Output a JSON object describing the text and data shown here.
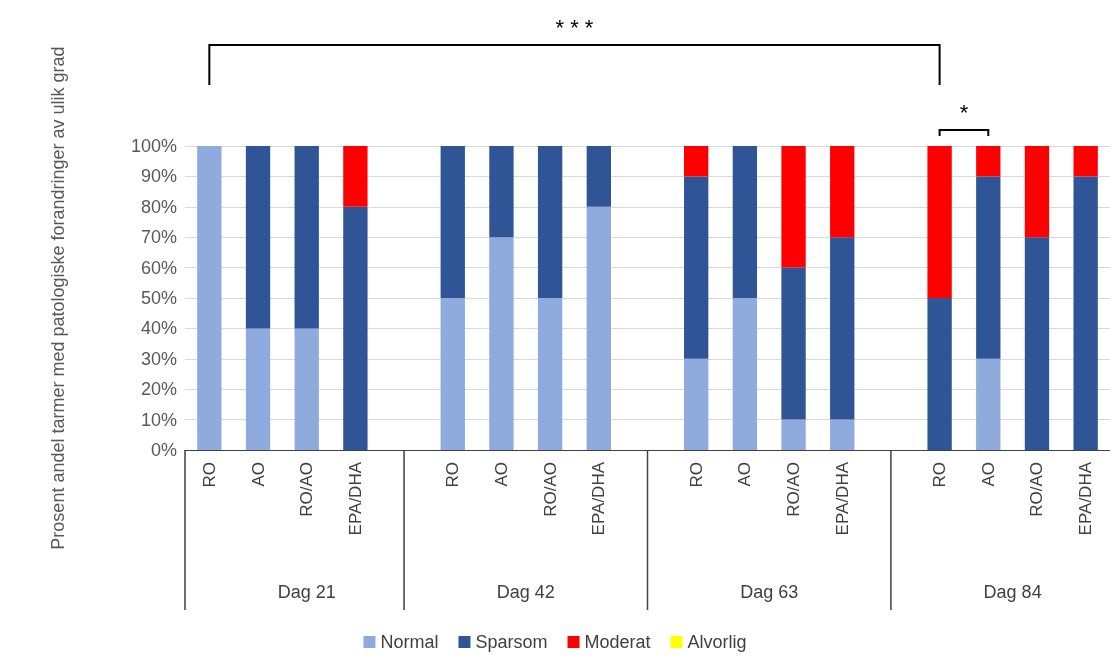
{
  "chart_data": {
    "type": "bar",
    "stacked": true,
    "ylabel": "Prosent andel tarmer med patologiske forandringer av ulik grad",
    "categories": [
      "RO",
      "AO",
      "RO/AO",
      "EPA/DHA",
      null,
      "RO",
      "AO",
      "RO/AO",
      "EPA/DHA",
      null,
      "RO",
      "AO",
      "RO/AO",
      "EPA/DHA",
      null,
      "RO",
      "AO",
      "RO/AO",
      "EPA/DHA"
    ],
    "series": [
      {
        "name": "Normal",
        "color": "#8faadc",
        "values": [
          100,
          40,
          40,
          0,
          null,
          50,
          70,
          50,
          80,
          null,
          30,
          50,
          10,
          10,
          null,
          0,
          30,
          0,
          0
        ]
      },
      {
        "name": "Sparsom",
        "color": "#2f5597",
        "values": [
          0,
          60,
          60,
          80,
          null,
          50,
          30,
          50,
          20,
          null,
          60,
          50,
          50,
          60,
          null,
          50,
          60,
          70,
          90
        ]
      },
      {
        "name": "Moderat",
        "color": "#ff0000",
        "values": [
          0,
          0,
          0,
          20,
          null,
          0,
          0,
          0,
          0,
          null,
          10,
          0,
          40,
          30,
          null,
          50,
          10,
          30,
          10
        ]
      },
      {
        "name": "Alvorlig",
        "color": "#ffff00",
        "values": [
          0,
          0,
          0,
          0,
          null,
          0,
          0,
          0,
          0,
          null,
          0,
          0,
          0,
          0,
          null,
          0,
          0,
          0,
          0
        ]
      }
    ],
    "ylim": [
      0,
      100
    ],
    "yticks": [
      {
        "value": 0,
        "label": "0%"
      },
      {
        "value": 10,
        "label": "10%"
      },
      {
        "value": 20,
        "label": "20%"
      },
      {
        "value": 30,
        "label": "30%"
      },
      {
        "value": 40,
        "label": "40%"
      },
      {
        "value": 50,
        "label": "50%"
      },
      {
        "value": 60,
        "label": "60%"
      },
      {
        "value": 70,
        "label": "70%"
      },
      {
        "value": 80,
        "label": "80%"
      },
      {
        "value": 90,
        "label": "90%"
      },
      {
        "value": 100,
        "label": "100%"
      }
    ],
    "grid": "y",
    "legend": "bottom",
    "annotations": [
      "* * *",
      "*",
      "Dag 21",
      "Dag 42",
      "Dag 63",
      "Dag 84"
    ]
  }
}
